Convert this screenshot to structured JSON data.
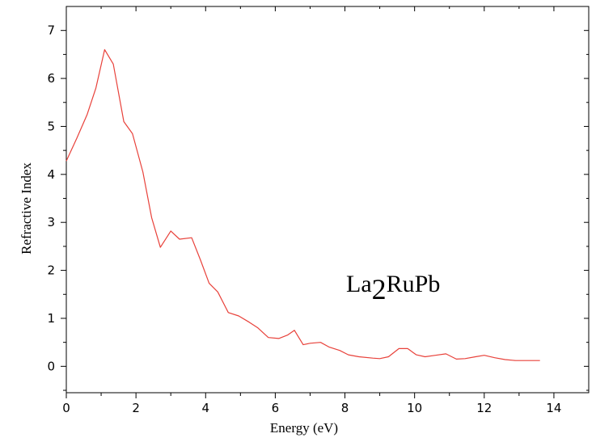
{
  "chart_data": {
    "type": "line",
    "xlabel": "Energy (eV)",
    "ylabel": "Refractive Index",
    "xlim": [
      0,
      15
    ],
    "ylim": [
      -0.55,
      7.5
    ],
    "xticks": [
      0,
      2,
      4,
      6,
      8,
      10,
      12,
      14
    ],
    "yticks": [
      0,
      1,
      2,
      3,
      4,
      5,
      6,
      7
    ],
    "grid": false,
    "annotation": {
      "base": "La",
      "subscript": "2",
      "rest": "RuPb"
    },
    "series": [
      {
        "color": "#e8413a",
        "x": [
          0,
          0.3,
          0.6,
          0.85,
          1.1,
          1.35,
          1.65,
          1.9,
          2.2,
          2.45,
          2.7,
          3.0,
          3.25,
          3.6,
          3.85,
          4.1,
          4.35,
          4.65,
          4.95,
          5.25,
          5.5,
          5.8,
          6.1,
          6.35,
          6.55,
          6.8,
          7.0,
          7.3,
          7.55,
          7.85,
          8.1,
          8.4,
          8.8,
          9.0,
          9.25,
          9.55,
          9.8,
          10.05,
          10.3,
          10.6,
          10.9,
          11.2,
          11.45,
          11.75,
          12.0,
          12.3,
          12.6,
          12.9,
          13.3,
          13.6
        ],
        "y": [
          4.28,
          4.75,
          5.25,
          5.8,
          6.6,
          6.3,
          5.1,
          4.85,
          4.05,
          3.1,
          2.48,
          2.82,
          2.65,
          2.68,
          2.22,
          1.73,
          1.55,
          1.12,
          1.05,
          0.92,
          0.8,
          0.6,
          0.58,
          0.65,
          0.75,
          0.45,
          0.48,
          0.5,
          0.4,
          0.33,
          0.24,
          0.2,
          0.17,
          0.16,
          0.2,
          0.37,
          0.37,
          0.24,
          0.2,
          0.23,
          0.26,
          0.15,
          0.16,
          0.2,
          0.23,
          0.18,
          0.14,
          0.12,
          0.12,
          0.12
        ]
      }
    ]
  }
}
